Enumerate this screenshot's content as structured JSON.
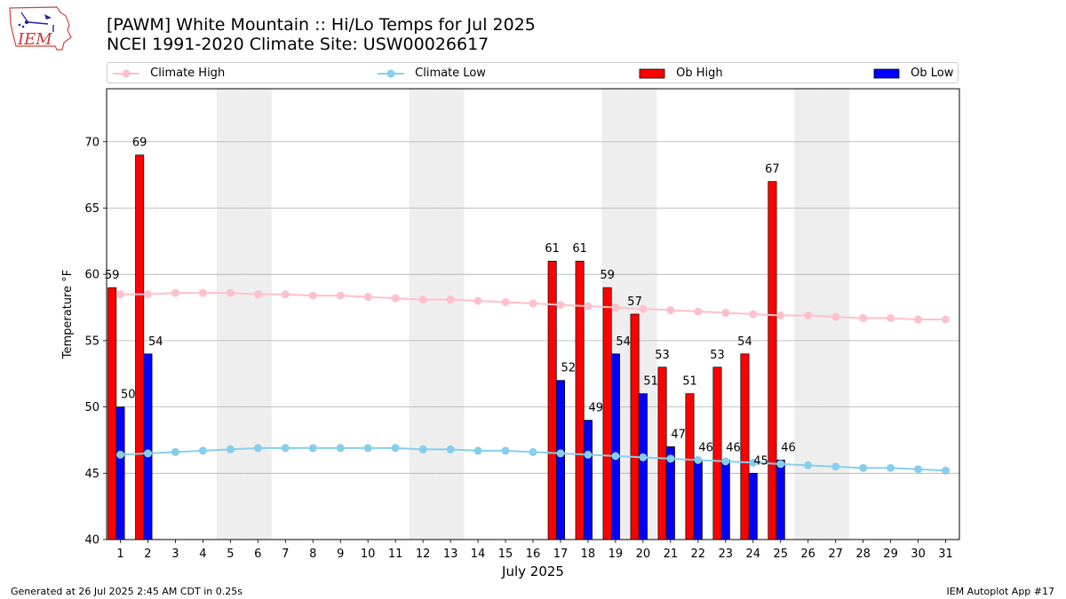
{
  "header": {
    "title_line1": "[PAWM] White Mountain :: Hi/Lo Temps for Jul 2025",
    "title_line2": "NCEI 1991-2020 Climate Site: USW00026617"
  },
  "logo": {
    "text": "IEM",
    "icon": "iem-iowa-logo"
  },
  "footer": {
    "generated": "Generated at 26 Jul 2025 2:45 AM CDT in 0.25s",
    "app": "IEM Autoplot App #17"
  },
  "colors": {
    "climate_high": "#ffc0cb",
    "climate_low": "#87ceeb",
    "ob_high": "#ff0000",
    "ob_low": "#0000ff",
    "weekend_shade": "#eeeeee",
    "grid": "#b0b0b0"
  },
  "chart_data": {
    "type": "bar",
    "xlabel": "July 2025",
    "ylabel": "Temperature °F",
    "ylim": [
      40,
      74
    ],
    "yticks": [
      40,
      45,
      50,
      55,
      60,
      65,
      70
    ],
    "xlim": [
      0.5,
      31.5
    ],
    "x": [
      1,
      2,
      3,
      4,
      5,
      6,
      7,
      8,
      9,
      10,
      11,
      12,
      13,
      14,
      15,
      16,
      17,
      18,
      19,
      20,
      21,
      22,
      23,
      24,
      25,
      26,
      27,
      28,
      29,
      30,
      31
    ],
    "grid": "horizontal",
    "legend_placement": "top, above plot",
    "shaded_days": [
      5,
      6,
      12,
      13,
      19,
      20,
      26,
      27
    ],
    "series": [
      {
        "name": "Climate High",
        "kind": "line",
        "values": [
          58.5,
          58.5,
          58.6,
          58.6,
          58.6,
          58.5,
          58.5,
          58.4,
          58.4,
          58.3,
          58.2,
          58.1,
          58.1,
          58.0,
          57.9,
          57.8,
          57.7,
          57.6,
          57.5,
          57.4,
          57.3,
          57.2,
          57.1,
          57.0,
          56.9,
          56.9,
          56.8,
          56.7,
          56.7,
          56.6,
          56.6
        ]
      },
      {
        "name": "Climate Low",
        "kind": "line",
        "values": [
          46.4,
          46.5,
          46.6,
          46.7,
          46.8,
          46.9,
          46.9,
          46.9,
          46.9,
          46.9,
          46.9,
          46.8,
          46.8,
          46.7,
          46.7,
          46.6,
          46.5,
          46.4,
          46.3,
          46.2,
          46.1,
          46.0,
          45.9,
          45.8,
          45.7,
          45.6,
          45.5,
          45.4,
          45.4,
          45.3,
          45.2
        ]
      },
      {
        "name": "Ob High",
        "kind": "bar",
        "values": [
          59,
          69,
          null,
          null,
          null,
          null,
          null,
          null,
          null,
          null,
          null,
          null,
          null,
          null,
          null,
          null,
          61,
          61,
          59,
          57,
          53,
          51,
          53,
          54,
          67,
          null,
          null,
          null,
          null,
          null,
          null
        ]
      },
      {
        "name": "Ob Low",
        "kind": "bar",
        "values": [
          50,
          54,
          null,
          null,
          null,
          null,
          null,
          null,
          null,
          null,
          null,
          null,
          null,
          null,
          null,
          null,
          52,
          49,
          54,
          51,
          47,
          46,
          46,
          45,
          46,
          null,
          null,
          null,
          null,
          null,
          null
        ]
      }
    ]
  }
}
